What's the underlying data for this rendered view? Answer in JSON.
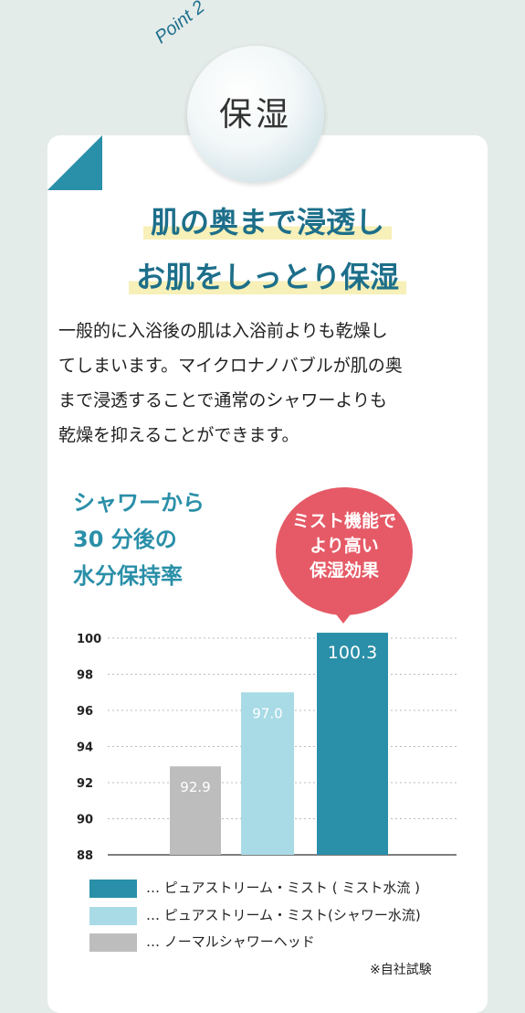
{
  "badge": {
    "label": "保湿",
    "point": "Point 2"
  },
  "headline": {
    "line1": "肌の奥まで浸透し",
    "line2": "お肌をしっとり保湿"
  },
  "body_lines": [
    "一般的に入浴後の肌は入浴前よりも乾燥し",
    "てしまいます。マイクロナノバブルが肌の奥",
    "まで浸透することで通常のシャワーよりも",
    "乾燥を抑えることができます。"
  ],
  "chart_title_lines": [
    "シャワーから",
    "30 分後の",
    "水分保持率"
  ],
  "callout_lines": [
    "ミスト機能で",
    "より高い",
    "保湿効果"
  ],
  "footnote": "※自社試験",
  "colors": {
    "teal": "#2a8fa8",
    "light_blue": "#a9dbe6",
    "gray": "#bdbdbd",
    "callout": "#e55a66"
  },
  "chart_data": {
    "type": "bar",
    "categories": [
      "ノーマルシャワーヘッド",
      "ピュアストリーム・ミスト(シャワー水流)",
      "ピュアストリーム・ミスト(ミスト水流)"
    ],
    "values": [
      92.9,
      97.0,
      100.3
    ],
    "value_labels": [
      "92.9",
      "97.0",
      "100.3"
    ],
    "ylim": [
      88,
      100
    ],
    "yticks": [
      "88",
      "90",
      "92",
      "94",
      "96",
      "98",
      "100"
    ],
    "grid": true,
    "legend": [
      "… ピュアストリーム・ミスト ( ミスト水流 )",
      "… ピュアストリーム・ミスト(シャワー水流)",
      "… ノーマルシャワーヘッド"
    ],
    "legend_placement": "bottom"
  }
}
